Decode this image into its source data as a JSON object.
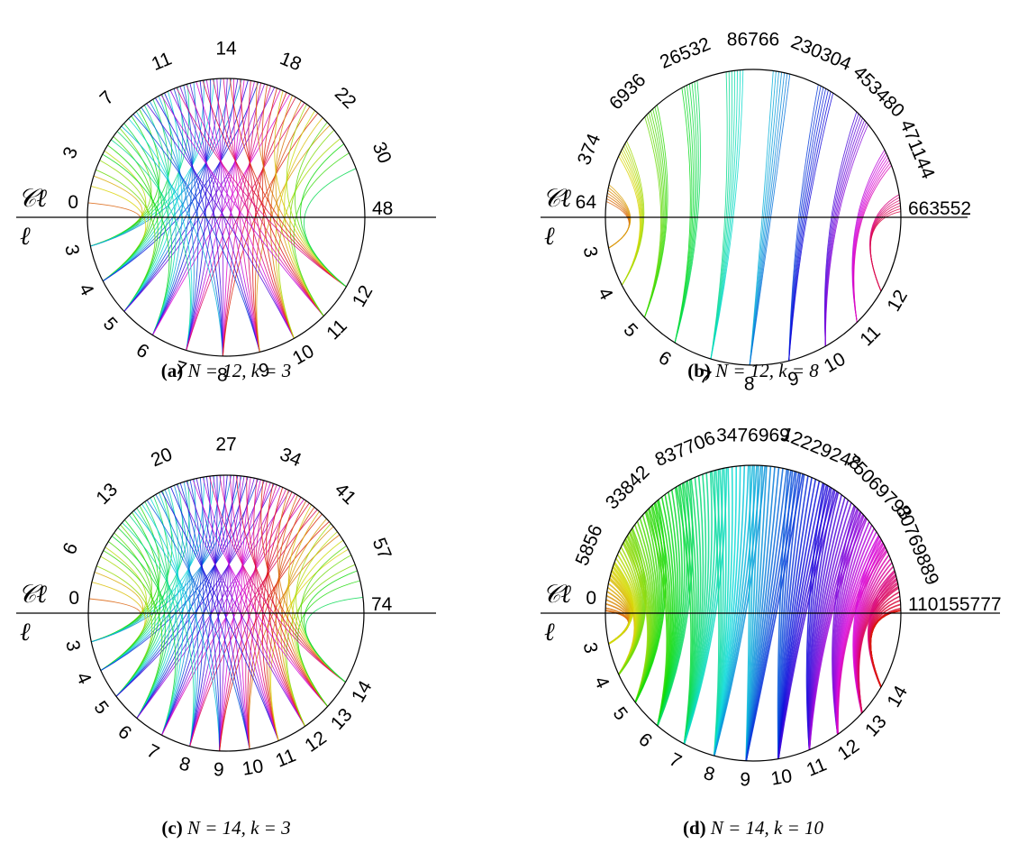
{
  "figure": {
    "panels": [
      {
        "id": "a",
        "caption": {
          "letter": "(a)",
          "text": "N = 12, k = 3"
        },
        "upper_label": "𝒞ℓ",
        "lower_label": "ℓ",
        "top_left_label": "0",
        "upper_ticks": [
          "0",
          "3",
          "7",
          "11",
          "14",
          "18",
          "22",
          "30",
          "48"
        ],
        "lower_ticks": [
          "3",
          "4",
          "5",
          "6",
          "7",
          "8",
          "9",
          "10",
          "11",
          "12"
        ],
        "right_end_label": "48"
      },
      {
        "id": "b",
        "caption": {
          "letter": "(b)",
          "text": "N = 12, k = 8"
        },
        "upper_label": "𝒞ℓ",
        "lower_label": "ℓ",
        "top_left_label": "64",
        "upper_ticks": [
          "64",
          "374",
          "6936",
          "26532",
          "86766",
          "230304",
          "453480",
          "471144",
          "663552"
        ],
        "lower_ticks": [
          "3",
          "4",
          "5",
          "6",
          "7",
          "8",
          "9",
          "10",
          "11",
          "12"
        ],
        "right_end_label": "663552"
      },
      {
        "id": "c",
        "caption": {
          "letter": "(c)",
          "text": "N = 14, k = 3"
        },
        "upper_label": "𝒞ℓ",
        "lower_label": "ℓ",
        "top_left_label": "0",
        "upper_ticks": [
          "0",
          "6",
          "13",
          "20",
          "27",
          "34",
          "41",
          "57",
          "74"
        ],
        "lower_ticks": [
          "3",
          "4",
          "5",
          "6",
          "7",
          "8",
          "9",
          "10",
          "11",
          "12",
          "13",
          "14"
        ],
        "right_end_label": "74"
      },
      {
        "id": "d",
        "caption": {
          "letter": "(d)",
          "text": "N = 14, k = 10"
        },
        "upper_label": "𝒞ℓ",
        "lower_label": "ℓ",
        "top_left_label": "0",
        "upper_ticks": [
          "0",
          "5856",
          "33842",
          "837706",
          "3476969",
          "12229248",
          "75069793",
          "80769889",
          "110155777"
        ],
        "lower_ticks": [
          "3",
          "4",
          "5",
          "6",
          "7",
          "8",
          "9",
          "10",
          "11",
          "12",
          "13",
          "14"
        ],
        "right_end_label": "110155777"
      }
    ]
  }
}
